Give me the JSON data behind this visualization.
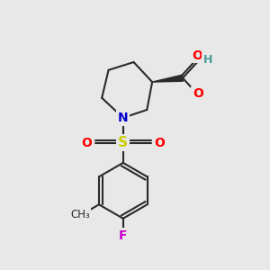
{
  "bg_color": "#e8e8e8",
  "bond_color": "#2a2a2a",
  "bond_width": 1.5,
  "atom_colors": {
    "O": "#ff0000",
    "N": "#0000cc",
    "S": "#cccc00",
    "F": "#cc00cc",
    "C": "#2a2a2a",
    "H": "#4a9a9a"
  },
  "font_size": 10,
  "font_size_H": 9
}
